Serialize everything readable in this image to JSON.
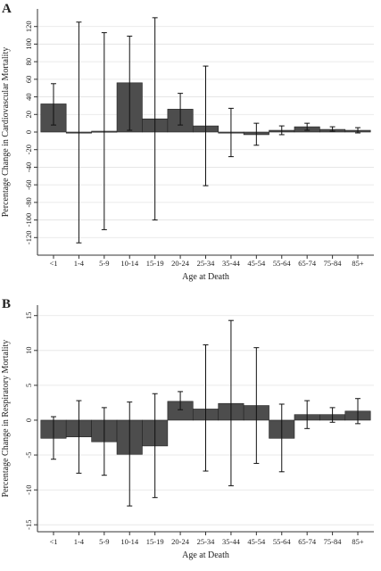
{
  "bar_color": "#4d4d4d",
  "error_color": "#111111",
  "grid_color": "#e3e3e3",
  "chart_data": [
    {
      "type": "bar",
      "panel_label": "A",
      "xlabel": "Age at Death",
      "ylabel": "Percentage Change in Cardiovascular Mortality",
      "categories": [
        "<1",
        "1-4",
        "5-9",
        "10-14",
        "15-19",
        "20-24",
        "25-34",
        "35-44",
        "45-54",
        "55-64",
        "65-74",
        "75-84",
        "85+"
      ],
      "values": [
        32,
        -1,
        1,
        56,
        15,
        26,
        7,
        -1,
        -3,
        2,
        6,
        3,
        2
      ],
      "error_low": [
        8,
        -126,
        -111,
        2,
        -100,
        8,
        -61,
        -28,
        -15,
        -3,
        2,
        1,
        -1
      ],
      "error_high": [
        55,
        125,
        113,
        109,
        130,
        44,
        75,
        27,
        10,
        7,
        10,
        6,
        5
      ],
      "yticks": [
        -120,
        -100,
        -80,
        -60,
        -40,
        -20,
        0,
        20,
        40,
        60,
        80,
        100,
        120
      ],
      "ylim": [
        -140,
        140
      ],
      "grid": true
    },
    {
      "type": "bar",
      "panel_label": "B",
      "xlabel": "Age at Death",
      "ylabel": "Percentage Change in Respiratory Mortality",
      "categories": [
        "<1",
        "1-4",
        "5-9",
        "10-14",
        "15-19",
        "20-24",
        "25-34",
        "35-44",
        "45-54",
        "55-64",
        "65-74",
        "75-84",
        "85+"
      ],
      "values": [
        -2.6,
        -2.4,
        -3.1,
        -4.9,
        -3.7,
        2.7,
        1.6,
        2.4,
        2.1,
        -2.6,
        0.8,
        0.8,
        1.3
      ],
      "error_low": [
        -5.6,
        -7.6,
        -7.9,
        -12.3,
        -11.1,
        1.5,
        -7.3,
        -9.4,
        -6.2,
        -7.4,
        -1.2,
        -0.3,
        -0.5
      ],
      "error_high": [
        0.5,
        2.8,
        1.8,
        2.6,
        3.8,
        4.1,
        10.8,
        14.3,
        10.4,
        2.3,
        2.8,
        1.8,
        3.1
      ],
      "yticks": [
        -15,
        -10,
        -5,
        0,
        5,
        10,
        15
      ],
      "ylim": [
        -16,
        16.5
      ],
      "grid": true
    }
  ]
}
